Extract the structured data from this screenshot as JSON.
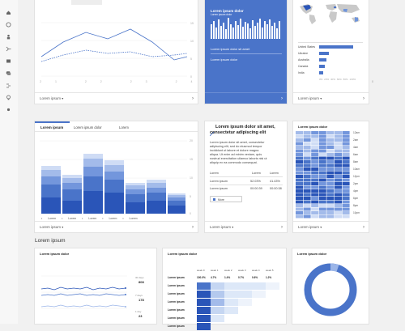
{
  "top_row": {
    "card1": {
      "x_ticks": [
        "21",
        "22",
        "23",
        "24",
        "25",
        "26",
        "27",
        "28"
      ],
      "y_ticks": [
        "15",
        "10",
        "5",
        "0"
      ],
      "footer": "Lorem ipsum"
    },
    "card2": {
      "label1": "Lorem ipsum dolor",
      "label2": "Lorem ipsum dolor",
      "label3": "Lorem ipsum dolor sit amet",
      "value": "Lorem ipsum dolor"
    },
    "card3": {
      "countries": [
        "United States",
        "Ukraine",
        "Australia",
        "Canada",
        "India"
      ],
      "x_ticks": [
        "0%",
        "20%",
        "40%",
        "60%",
        "80%",
        "100%"
      ],
      "footer": "Lorem ipsum"
    }
  },
  "mid_row": {
    "bar_card": {
      "tabs": [
        "Lorem ipsum",
        "Lorem ipsum dolor",
        "Lorem"
      ],
      "y_ticks": [
        "20",
        "15",
        "10",
        "5",
        "0"
      ],
      "x_ticks": [
        "11",
        "12",
        "13",
        "14",
        "15",
        "16",
        "17"
      ],
      "legend": [
        "Lorem",
        "Lorem",
        "Lorem",
        "Lorem",
        "Lorem"
      ],
      "footer": "Lorem ipsum"
    },
    "text_card": {
      "title": "Lorem ipsum dolor sit amet, consectetur adipiscing elit",
      "body": [
        "Lorem ipsum dolor sit amet, consectetur",
        "adipiscing elit, sed do eiusmod tempor",
        "incididunt ut labore et dolore magna",
        "aliqua. Ut enim ad minim veniam, quis",
        "nostrud exercitation ullamco laboris nisi ut",
        "aliquip ex ea commodo consequat."
      ],
      "table_header": [
        "Lorem",
        "Lorem",
        "Lorem"
      ],
      "rows": [
        [
          "Lorem ipsum",
          "52.03%",
          "41.43%"
        ],
        [
          "Lorem ipsum",
          "00:00:39",
          "00:00:38"
        ]
      ],
      "more_label": "More",
      "footer": "Lorem ipsum"
    },
    "heat_card": {
      "title": "Lorem ipsum dolor",
      "row_labels": [
        "12am",
        "2am",
        "4am",
        "6am",
        "8am",
        "10am",
        "12pm",
        "2pm",
        "4pm",
        "6pm",
        "8pm",
        "10pm"
      ],
      "footer": "Lorem ipsum"
    }
  },
  "section_title": "Lorem ipsum",
  "bottom_row": {
    "line_card": {
      "title": "Lorem ipsum dolor",
      "legend": [
        {
          "label": "30 days",
          "value": "808"
        },
        {
          "label": "7 days",
          "value": "178"
        },
        {
          "label": "1 day",
          "value": "23"
        }
      ]
    },
    "cohort_card": {
      "title": "Lorem ipsum dolor",
      "col_header": [
        "week 0",
        "week 1",
        "week 2",
        "week 3",
        "week 4",
        "week 5"
      ],
      "first_row": [
        "100.0%",
        "4.7%",
        "1.4%",
        "0.7%",
        "0.6%",
        "1.2%"
      ],
      "row_label": "Lorem ipsum"
    },
    "donut_card": {
      "title": "Lorem ipsum dolor"
    }
  },
  "colors": {
    "accent": "#4a74c9",
    "dark": "#2a55b8",
    "light": "#c5d6f2",
    "pale": "#dde8f8"
  }
}
